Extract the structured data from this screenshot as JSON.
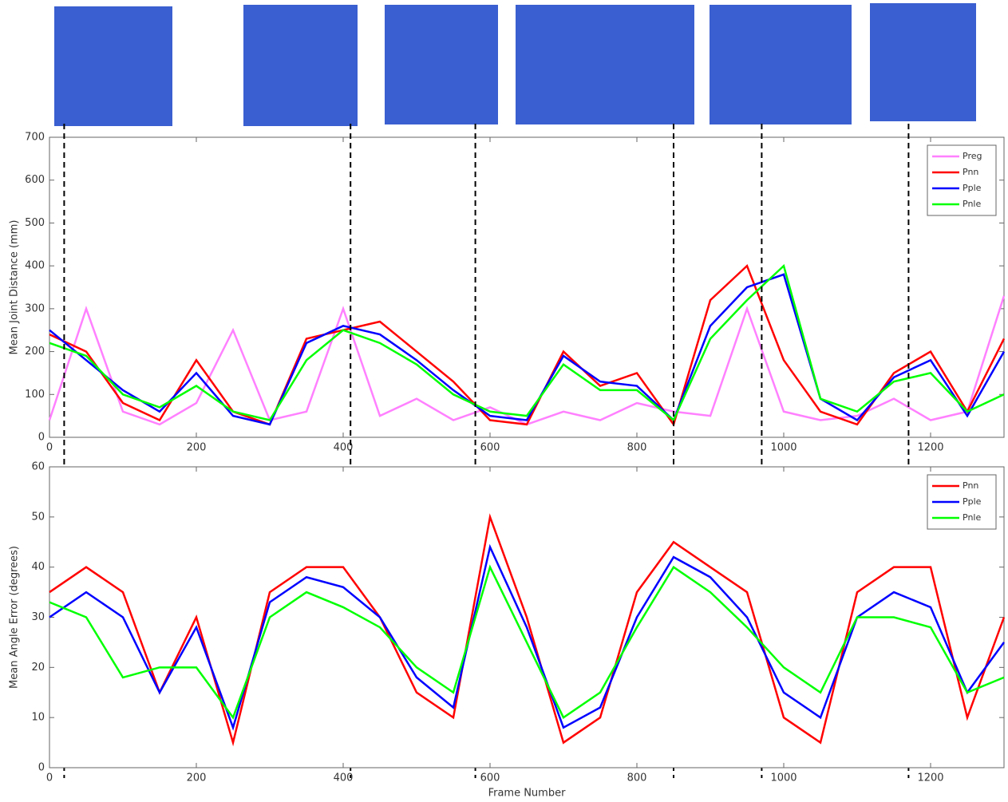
{
  "chart_data": [
    {
      "type": "line",
      "ylabel": "Mean Joint Distance (mm)",
      "x": [
        0,
        50,
        100,
        150,
        200,
        250,
        300,
        350,
        400,
        450,
        500,
        550,
        600,
        650,
        700,
        750,
        800,
        850,
        900,
        950,
        1000,
        1050,
        1100,
        1150,
        1200,
        1250,
        1300
      ],
      "series": [
        {
          "name": "Preg",
          "color": "#ff80ff",
          "values": [
            40,
            300,
            60,
            30,
            80,
            250,
            40,
            60,
            300,
            50,
            90,
            40,
            70,
            30,
            60,
            40,
            80,
            60,
            50,
            300,
            60,
            40,
            50,
            90,
            40,
            60,
            330
          ]
        },
        {
          "name": "Pnn",
          "color": "#ff0000",
          "values": [
            240,
            200,
            80,
            40,
            180,
            60,
            30,
            230,
            250,
            270,
            200,
            130,
            40,
            30,
            200,
            120,
            150,
            30,
            320,
            400,
            180,
            60,
            30,
            150,
            200,
            60,
            230
          ]
        },
        {
          "name": "Pple",
          "color": "#0000ff",
          "values": [
            250,
            180,
            110,
            60,
            150,
            50,
            30,
            220,
            260,
            240,
            180,
            110,
            50,
            40,
            190,
            130,
            120,
            40,
            260,
            350,
            380,
            90,
            40,
            140,
            180,
            50,
            200
          ]
        },
        {
          "name": "Pnle",
          "color": "#00ff00",
          "values": [
            220,
            190,
            100,
            70,
            120,
            60,
            40,
            180,
            250,
            220,
            170,
            100,
            60,
            50,
            170,
            110,
            110,
            40,
            230,
            320,
            400,
            90,
            60,
            130,
            150,
            60,
            100
          ]
        }
      ],
      "xlim": [
        0,
        1300
      ],
      "xticks": [
        0,
        200,
        400,
        600,
        800,
        1000,
        1200
      ],
      "ylim": [
        0,
        700
      ],
      "yticks": [
        0,
        100,
        200,
        300,
        400,
        500,
        600,
        700
      ],
      "markers": [
        20,
        410,
        580,
        850,
        970,
        1170
      ],
      "legend": "upper right"
    },
    {
      "type": "line",
      "ylabel": "Mean Angle Error (degrees)",
      "xlabel": "Frame Number",
      "x": [
        0,
        50,
        100,
        150,
        200,
        250,
        300,
        350,
        400,
        450,
        500,
        550,
        600,
        650,
        700,
        750,
        800,
        850,
        900,
        950,
        1000,
        1050,
        1100,
        1150,
        1200,
        1250,
        1300
      ],
      "series": [
        {
          "name": "Pnn",
          "color": "#ff0000",
          "values": [
            35,
            40,
            35,
            15,
            30,
            5,
            35,
            40,
            40,
            30,
            15,
            10,
            50,
            30,
            5,
            10,
            35,
            45,
            40,
            35,
            10,
            5,
            35,
            40,
            40,
            10,
            30
          ]
        },
        {
          "name": "Pple",
          "color": "#0000ff",
          "values": [
            30,
            35,
            30,
            15,
            28,
            8,
            33,
            38,
            36,
            30,
            18,
            12,
            44,
            28,
            8,
            12,
            30,
            42,
            38,
            30,
            15,
            10,
            30,
            35,
            32,
            15,
            25
          ]
        },
        {
          "name": "Pnle",
          "color": "#00ff00",
          "values": [
            33,
            30,
            18,
            20,
            20,
            10,
            30,
            35,
            32,
            28,
            20,
            15,
            40,
            25,
            10,
            15,
            28,
            40,
            35,
            28,
            20,
            15,
            30,
            30,
            28,
            15,
            18
          ]
        }
      ],
      "xlim": [
        0,
        1300
      ],
      "xticks": [
        0,
        200,
        400,
        600,
        800,
        1000,
        1200
      ],
      "ylim": [
        0,
        60
      ],
      "yticks": [
        0,
        10,
        20,
        30,
        40,
        50,
        60
      ],
      "legend": "upper right"
    }
  ]
}
